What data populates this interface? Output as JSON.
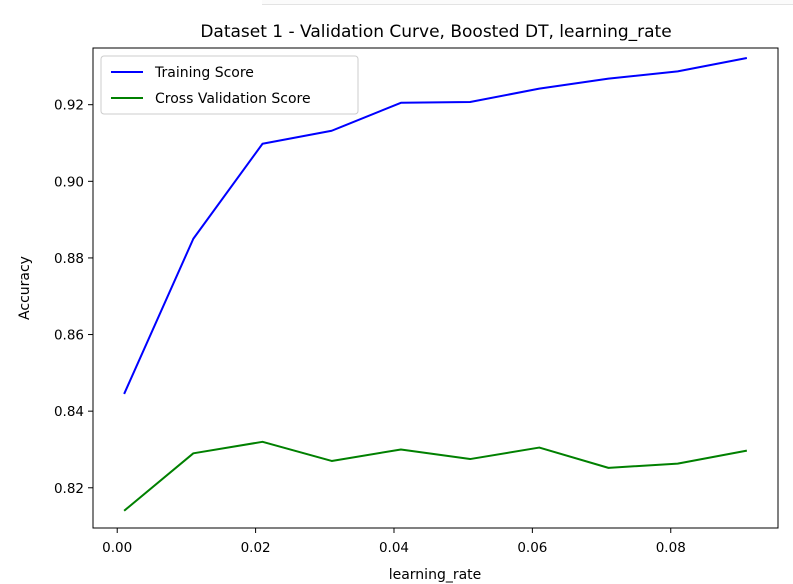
{
  "chart_data": {
    "type": "line",
    "title": "Dataset 1 - Validation Curve, Boosted DT, learning_rate",
    "xlabel": "learning_rate",
    "ylabel": "Accuracy",
    "x": [
      0.001,
      0.011,
      0.021,
      0.031,
      0.041,
      0.051,
      0.061,
      0.071,
      0.081,
      0.091
    ],
    "xlim": [
      -0.0035,
      0.0955
    ],
    "ylim": [
      0.8095,
      0.9348
    ],
    "xticks": [
      0.0,
      0.02,
      0.04,
      0.06,
      0.08
    ],
    "xtick_labels": [
      "0.00",
      "0.02",
      "0.04",
      "0.06",
      "0.08"
    ],
    "yticks": [
      0.82,
      0.84,
      0.86,
      0.88,
      0.9,
      0.92
    ],
    "ytick_labels": [
      "0.82",
      "0.84",
      "0.86",
      "0.88",
      "0.90",
      "0.92"
    ],
    "grid": false,
    "legend_position": "top-left",
    "series": [
      {
        "name": "Training Score",
        "color": "#0000ff",
        "values": [
          0.8445,
          0.885,
          0.9098,
          0.9132,
          0.9205,
          0.9207,
          0.9242,
          0.9268,
          0.9287,
          0.9322
        ]
      },
      {
        "name": "Cross Validation Score",
        "color": "#008000",
        "values": [
          0.814,
          0.829,
          0.832,
          0.827,
          0.83,
          0.8275,
          0.8305,
          0.8252,
          0.8263,
          0.8297
        ]
      }
    ]
  }
}
